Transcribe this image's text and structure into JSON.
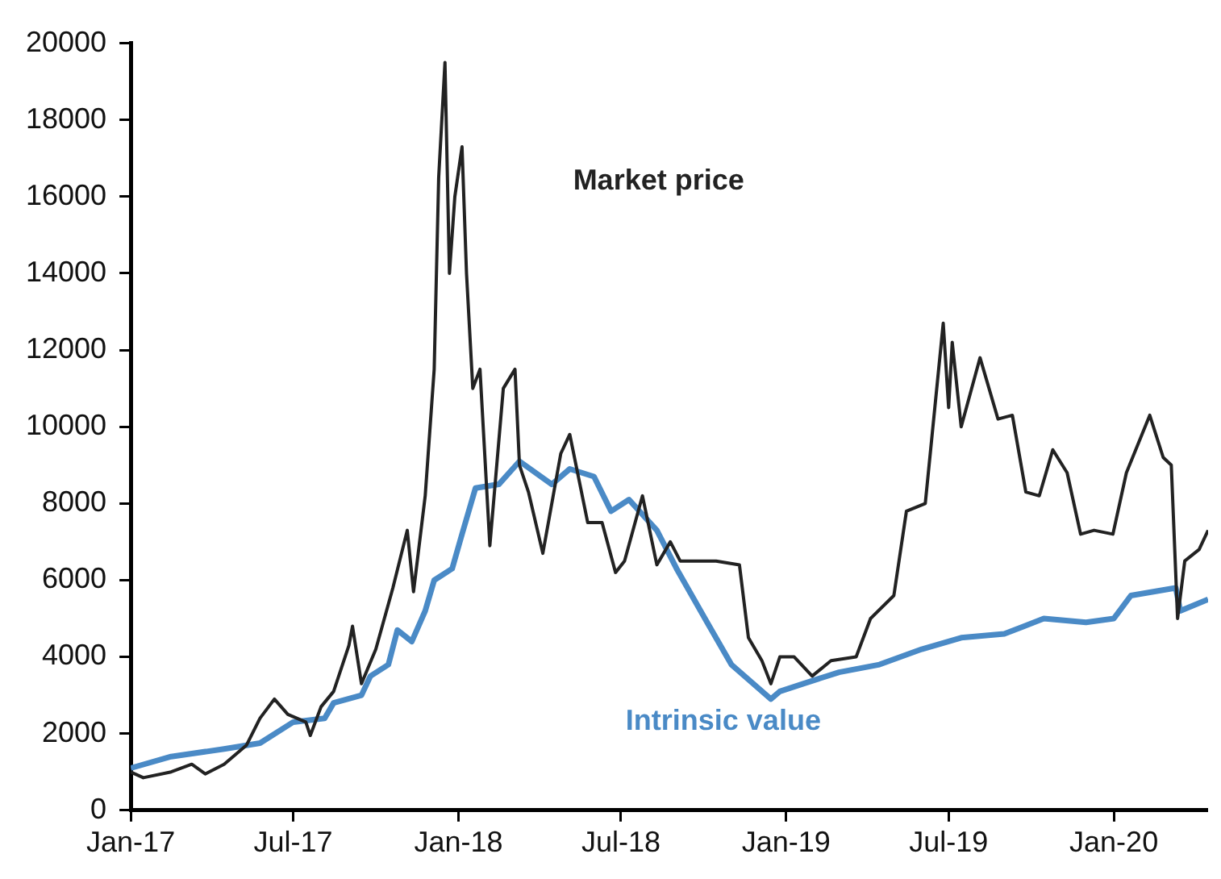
{
  "chart_data": {
    "type": "line",
    "xlim": [
      "2017-01-01",
      "2020-04-15"
    ],
    "xticks": [
      {
        "value": "2017-01-01",
        "label": "Jan-17"
      },
      {
        "value": "2017-07-01",
        "label": "Jul-17"
      },
      {
        "value": "2018-01-01",
        "label": "Jan-18"
      },
      {
        "value": "2018-07-01",
        "label": "Jul-18"
      },
      {
        "value": "2019-01-01",
        "label": "Jan-19"
      },
      {
        "value": "2019-07-01",
        "label": "Jul-19"
      },
      {
        "value": "2020-01-01",
        "label": "Jan-20"
      }
    ],
    "ylim": [
      0,
      20000
    ],
    "yticks": [
      0,
      2000,
      4000,
      6000,
      8000,
      10000,
      12000,
      14000,
      16000,
      18000,
      20000
    ],
    "grid": false,
    "legend": false,
    "marker": "none",
    "line_style": "solid",
    "series": [
      {
        "name": "Market price",
        "color": "#222222",
        "x": [
          "2017-01-01",
          "2017-01-15",
          "2017-02-15",
          "2017-03-10",
          "2017-03-25",
          "2017-04-15",
          "2017-05-10",
          "2017-05-25",
          "2017-06-10",
          "2017-06-25",
          "2017-07-15",
          "2017-07-20",
          "2017-08-01",
          "2017-08-15",
          "2017-09-01",
          "2017-09-05",
          "2017-09-15",
          "2017-10-01",
          "2017-10-20",
          "2017-11-05",
          "2017-11-12",
          "2017-11-25",
          "2017-12-05",
          "2017-12-10",
          "2017-12-17",
          "2017-12-22",
          "2017-12-28",
          "2018-01-05",
          "2018-01-10",
          "2018-01-17",
          "2018-01-25",
          "2018-02-05",
          "2018-02-20",
          "2018-03-05",
          "2018-03-10",
          "2018-03-20",
          "2018-04-05",
          "2018-04-25",
          "2018-05-05",
          "2018-05-25",
          "2018-06-10",
          "2018-06-25",
          "2018-07-05",
          "2018-07-25",
          "2018-08-10",
          "2018-08-25",
          "2018-09-05",
          "2018-10-15",
          "2018-11-10",
          "2018-11-20",
          "2018-12-05",
          "2018-12-15",
          "2018-12-25",
          "2019-01-10",
          "2019-01-30",
          "2019-02-20",
          "2019-03-20",
          "2019-04-05",
          "2019-05-01",
          "2019-05-15",
          "2019-06-05",
          "2019-06-25",
          "2019-07-01",
          "2019-07-05",
          "2019-07-15",
          "2019-08-05",
          "2019-08-25",
          "2019-09-10",
          "2019-09-25",
          "2019-10-10",
          "2019-10-25",
          "2019-11-10",
          "2019-11-25",
          "2019-12-10",
          "2019-12-31",
          "2020-01-15",
          "2020-02-10",
          "2020-02-25",
          "2020-03-05",
          "2020-03-12",
          "2020-03-20",
          "2020-04-05",
          "2020-04-15"
        ],
        "values": [
          1000,
          850,
          1000,
          1200,
          950,
          1200,
          1700,
          2400,
          2900,
          2500,
          2300,
          1950,
          2700,
          3100,
          4300,
          4800,
          3300,
          4200,
          5800,
          7300,
          5700,
          8200,
          11500,
          16500,
          19500,
          14000,
          16000,
          17300,
          14000,
          11000,
          11500,
          6900,
          11000,
          11500,
          9000,
          8300,
          6700,
          9300,
          9800,
          7500,
          7500,
          6200,
          6500,
          8200,
          6400,
          7000,
          6500,
          6500,
          6400,
          4500,
          3900,
          3300,
          4000,
          4000,
          3500,
          3900,
          4000,
          5000,
          5600,
          7800,
          8000,
          12700,
          10500,
          12200,
          10000,
          11800,
          10200,
          10300,
          8300,
          8200,
          9400,
          8800,
          7200,
          7300,
          7200,
          8800,
          10300,
          9200,
          9000,
          5000,
          6500,
          6800,
          7300
        ]
      },
      {
        "name": "Intrinsic value",
        "color": "#4a8ac6",
        "x": [
          "2017-01-01",
          "2017-02-15",
          "2017-04-15",
          "2017-05-25",
          "2017-07-01",
          "2017-08-05",
          "2017-08-15",
          "2017-09-15",
          "2017-09-25",
          "2017-10-15",
          "2017-10-25",
          "2017-11-10",
          "2017-11-25",
          "2017-12-05",
          "2017-12-25",
          "2018-01-05",
          "2018-01-20",
          "2018-02-15",
          "2018-03-10",
          "2018-04-15",
          "2018-05-05",
          "2018-06-01",
          "2018-06-20",
          "2018-07-10",
          "2018-08-10",
          "2018-09-01",
          "2018-10-05",
          "2018-11-01",
          "2018-12-15",
          "2018-12-25",
          "2019-01-20",
          "2019-03-01",
          "2019-04-15",
          "2019-06-01",
          "2019-07-15",
          "2019-09-01",
          "2019-10-15",
          "2019-12-01",
          "2020-01-01",
          "2020-01-20",
          "2020-03-10",
          "2020-03-15",
          "2020-04-15"
        ],
        "values": [
          1100,
          1400,
          1600,
          1750,
          2300,
          2400,
          2800,
          3000,
          3500,
          3800,
          4700,
          4400,
          5200,
          6000,
          6300,
          7200,
          8400,
          8500,
          9100,
          8500,
          8900,
          8700,
          7800,
          8100,
          7300,
          6300,
          4900,
          3800,
          2900,
          3100,
          3300,
          3600,
          3800,
          4200,
          4500,
          4600,
          5000,
          4900,
          5000,
          5600,
          5800,
          5200,
          5500
        ]
      }
    ]
  }
}
